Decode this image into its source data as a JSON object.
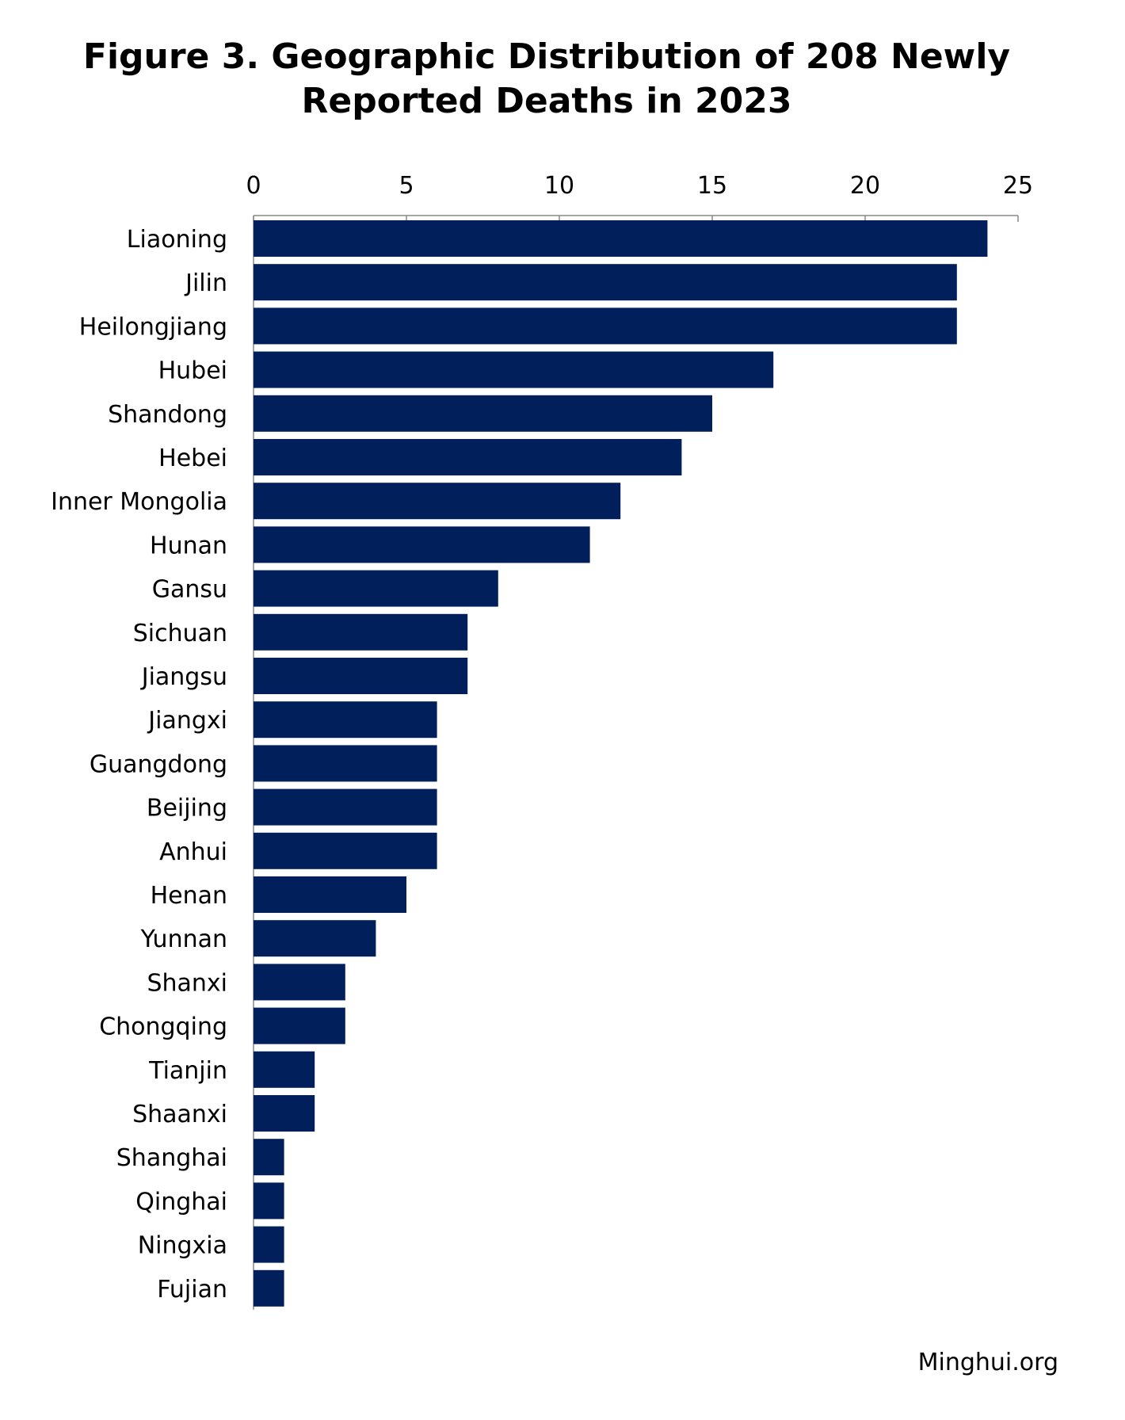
{
  "chart_data": {
    "type": "bar",
    "orientation": "horizontal",
    "title_line1": "Figure 3. Geographic Distribution of 208 Newly",
    "title_line2": "Reported Deaths in 2023",
    "categories": [
      "Liaoning",
      "Jilin",
      "Heilongjiang",
      "Hubei",
      "Shandong",
      "Hebei",
      "Inner Mongolia",
      "Hunan",
      "Gansu",
      "Sichuan",
      "Jiangsu",
      "Jiangxi",
      "Guangdong",
      "Beijing",
      "Anhui",
      "Henan",
      "Yunnan",
      "Shanxi",
      "Chongqing",
      "Tianjin",
      "Shaanxi",
      "Shanghai",
      "Qinghai",
      "Ningxia",
      "Fujian"
    ],
    "values": [
      24,
      23,
      23,
      17,
      15,
      14,
      12,
      11,
      8,
      7,
      7,
      6,
      6,
      6,
      6,
      5,
      4,
      3,
      3,
      2,
      2,
      1,
      1,
      1,
      1
    ],
    "xlim": [
      0,
      25
    ],
    "xticks": [
      0,
      5,
      10,
      15,
      20,
      25
    ],
    "x_axis_position": "top",
    "grid": false,
    "bar_color": "#001f5b"
  },
  "source": "Minghui.org"
}
